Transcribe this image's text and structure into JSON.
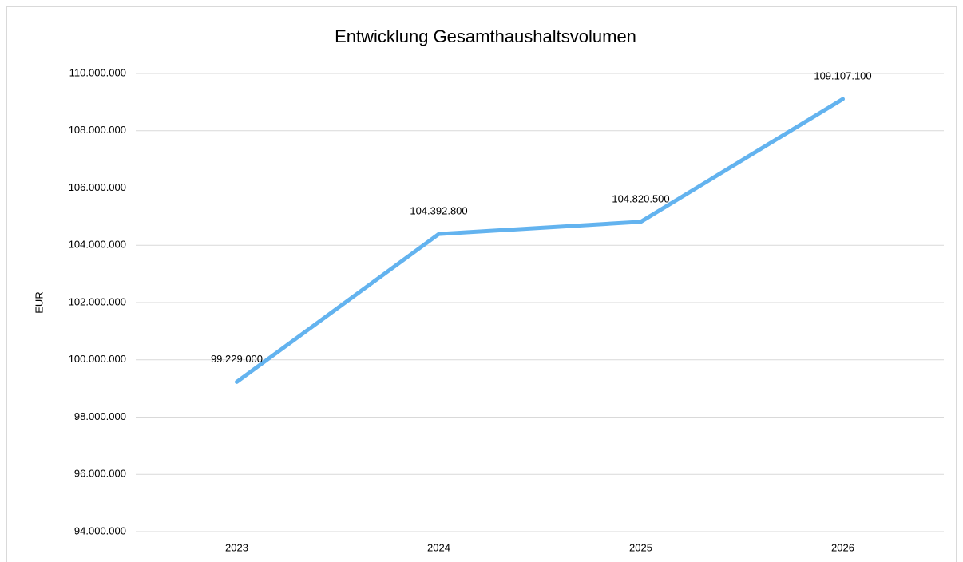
{
  "chart_data": {
    "type": "line",
    "title": "Entwicklung Gesamthaushaltsvolumen",
    "y_label": "EUR",
    "categories": [
      "2023",
      "2024",
      "2025",
      "2026"
    ],
    "series": [
      {
        "name": "Gesamthaushaltsvolumen",
        "color": "#63b3ef",
        "values": [
          99229000,
          104392800,
          104820500,
          109107100
        ],
        "value_labels": [
          "99.229.000",
          "104.392.800",
          "104.820.500",
          "109.107.100"
        ]
      }
    ],
    "ylim": [
      94000000,
      110000000
    ],
    "yticks": [
      {
        "value": 94000000,
        "label": "94.000.000"
      },
      {
        "value": 96000000,
        "label": "96.000.000"
      },
      {
        "value": 98000000,
        "label": "98.000.000"
      },
      {
        "value": 100000000,
        "label": "100.000.000"
      },
      {
        "value": 102000000,
        "label": "102.000.000"
      },
      {
        "value": 104000000,
        "label": "104.000.000"
      },
      {
        "value": 106000000,
        "label": "106.000.000"
      },
      {
        "value": 108000000,
        "label": "108.000.000"
      },
      {
        "value": 110000000,
        "label": "110.000.000"
      }
    ],
    "grid": true
  }
}
